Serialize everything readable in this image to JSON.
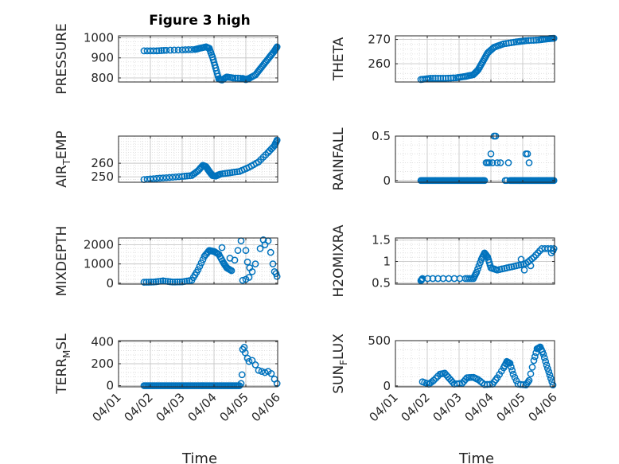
{
  "figure_title": "Figure 3 high",
  "marker_color": "#0072BD",
  "x_axis_label": "Time",
  "x_tick_labels": [
    "04/01",
    "04/02",
    "04/03",
    "04/04",
    "04/05",
    "04/06"
  ],
  "chart_data": [
    {
      "type": "scatter",
      "title": "Figure 3 high",
      "ylabel": "PRESSURE",
      "xlim": [
        0,
        5
      ],
      "ylim": [
        780,
        1010
      ],
      "yticks": [
        800,
        900,
        1000
      ],
      "yticklabels": [
        "800",
        "900",
        "1000"
      ],
      "xlabel": "",
      "segments": [
        [
          0.8,
          935
        ],
        [
          1.2,
          935
        ],
        [
          1.5,
          938
        ],
        [
          2.0,
          940
        ],
        [
          2.4,
          942
        ],
        [
          2.55,
          948
        ],
        [
          2.75,
          955
        ],
        [
          2.85,
          948
        ],
        [
          2.95,
          905
        ],
        [
          3.05,
          850
        ],
        [
          3.15,
          795
        ],
        [
          3.25,
          790
        ],
        [
          3.4,
          805
        ],
        [
          3.6,
          800
        ],
        [
          3.9,
          798
        ],
        [
          4.0,
          792
        ],
        [
          4.1,
          798
        ],
        [
          4.3,
          815
        ],
        [
          4.45,
          845
        ],
        [
          4.6,
          875
        ],
        [
          4.75,
          905
        ],
        [
          4.9,
          935
        ],
        [
          4.98,
          955
        ]
      ],
      "points_per_segment": 4
    },
    {
      "type": "scatter",
      "ylabel": "THETA",
      "xlim": [
        0,
        5
      ],
      "ylim": [
        252.5,
        271.5
      ],
      "yticks": [
        260,
        270
      ],
      "yticklabels": [
        "260",
        "270"
      ],
      "xlabel": "",
      "segments": [
        [
          0.8,
          253.5
        ],
        [
          1.1,
          254
        ],
        [
          1.5,
          254
        ],
        [
          1.9,
          254.2
        ],
        [
          2.2,
          254.8
        ],
        [
          2.45,
          255.5
        ],
        [
          2.6,
          257.5
        ],
        [
          2.75,
          261
        ],
        [
          2.9,
          264.5
        ],
        [
          3.1,
          266.8
        ],
        [
          3.4,
          268.2
        ],
        [
          3.8,
          269.0
        ],
        [
          4.1,
          269.5
        ],
        [
          4.5,
          269.8
        ],
        [
          4.8,
          270.3
        ],
        [
          4.98,
          270.5
        ]
      ],
      "points_per_segment": 5
    },
    {
      "type": "scatter",
      "ylabel": "AIR_TEMP",
      "xlim": [
        0,
        5
      ],
      "ylim": [
        246,
        280
      ],
      "yticks": [
        250,
        260
      ],
      "yticklabels": [
        "250",
        "260"
      ],
      "xlabel": "",
      "segments": [
        [
          0.8,
          248
        ],
        [
          1.2,
          248.8
        ],
        [
          1.6,
          249.5
        ],
        [
          2.0,
          250.3
        ],
        [
          2.3,
          251.0
        ],
        [
          2.5,
          254.5
        ],
        [
          2.65,
          258.5
        ],
        [
          2.75,
          257.5
        ],
        [
          2.85,
          254
        ],
        [
          2.95,
          251
        ],
        [
          3.05,
          250.5
        ],
        [
          3.2,
          252
        ],
        [
          3.5,
          253
        ],
        [
          3.8,
          254
        ],
        [
          4.1,
          257
        ],
        [
          4.4,
          261
        ],
        [
          4.7,
          268
        ],
        [
          4.9,
          273
        ],
        [
          4.98,
          277
        ]
      ],
      "points_per_segment": 4
    },
    {
      "type": "scatter",
      "ylabel": "RAINFALL",
      "xlim": [
        0,
        5
      ],
      "ylim": [
        -0.02,
        0.5
      ],
      "yticks": [
        0,
        0.5
      ],
      "yticklabels": [
        "0",
        "0.5"
      ],
      "xlabel": "",
      "segments": [
        [
          0.8,
          0
        ],
        [
          2.8,
          0
        ]
      ],
      "points_per_segment": 60,
      "segments_b": [
        [
          3.6,
          0
        ],
        [
          4.98,
          0
        ]
      ],
      "extra_points": [
        [
          2.85,
          0.2
        ],
        [
          2.9,
          0.2
        ],
        [
          2.95,
          0.2
        ],
        [
          3.0,
          0.3
        ],
        [
          3.05,
          0.2
        ],
        [
          3.1,
          0.5
        ],
        [
          3.15,
          0.5
        ],
        [
          3.2,
          0.2
        ],
        [
          3.3,
          0.2
        ],
        [
          3.45,
          0.0
        ],
        [
          3.5,
          0.0
        ],
        [
          3.55,
          0.2
        ],
        [
          3.9,
          0.0
        ],
        [
          4.1,
          0.3
        ],
        [
          4.15,
          0.3
        ],
        [
          4.2,
          0.2
        ]
      ]
    },
    {
      "type": "scatter",
      "ylabel": "MIXDEPTH",
      "xlim": [
        0,
        5
      ],
      "ylim": [
        -50,
        2350
      ],
      "yticks": [
        0,
        1000,
        2000
      ],
      "yticklabels": [
        "0",
        "1000",
        "2000"
      ],
      "xlabel": "",
      "segments": [
        [
          0.8,
          50
        ],
        [
          1.1,
          60
        ],
        [
          1.4,
          120
        ],
        [
          1.7,
          60
        ],
        [
          2.0,
          70
        ],
        [
          2.3,
          150
        ],
        [
          2.5,
          700
        ],
        [
          2.7,
          1400
        ],
        [
          2.85,
          1700
        ],
        [
          3.0,
          1650
        ],
        [
          3.15,
          1500
        ],
        [
          3.3,
          1050
        ],
        [
          3.4,
          800
        ],
        [
          3.55,
          650
        ]
      ],
      "points_per_segment": 4,
      "extra_points": [
        [
          3.25,
          1850
        ],
        [
          3.5,
          1300
        ],
        [
          3.65,
          1200
        ],
        [
          3.75,
          1700
        ],
        [
          3.85,
          2200
        ],
        [
          4.0,
          1700
        ],
        [
          4.05,
          1100
        ],
        [
          4.12,
          800
        ],
        [
          4.2,
          600
        ],
        [
          4.0,
          200
        ],
        [
          3.9,
          150
        ],
        [
          4.1,
          300
        ],
        [
          4.3,
          1000
        ],
        [
          4.45,
          1800
        ],
        [
          4.55,
          2250
        ],
        [
          4.6,
          2000
        ],
        [
          4.7,
          2200
        ],
        [
          4.78,
          1600
        ],
        [
          4.85,
          1000
        ],
        [
          4.9,
          600
        ],
        [
          4.95,
          500
        ],
        [
          4.98,
          350
        ]
      ]
    },
    {
      "type": "scatter",
      "ylabel": "H2OMIXRA",
      "xlim": [
        0,
        5
      ],
      "ylim": [
        0.47,
        1.55
      ],
      "yticks": [
        0.5,
        1,
        1.5
      ],
      "yticklabels": [
        "0.5",
        "1",
        "1.5"
      ],
      "xlabel": "",
      "segments": [
        [
          0.8,
          0.55
        ],
        [
          0.85,
          0.6
        ],
        [
          1.5,
          0.6
        ],
        [
          2.2,
          0.6
        ],
        [
          2.45,
          0.6
        ],
        [
          2.55,
          0.75
        ],
        [
          2.7,
          1.05
        ],
        [
          2.8,
          1.2
        ],
        [
          2.9,
          1.1
        ],
        [
          3.0,
          0.85
        ],
        [
          3.2,
          0.8
        ],
        [
          3.5,
          0.85
        ],
        [
          3.8,
          0.9
        ],
        [
          4.1,
          0.95
        ],
        [
          4.35,
          1.1
        ],
        [
          4.6,
          1.3
        ],
        [
          4.98,
          1.3
        ]
      ],
      "points_per_segment": 4,
      "extra_points": [
        [
          3.95,
          1.05
        ],
        [
          4.05,
          0.8
        ],
        [
          4.25,
          0.9
        ],
        [
          4.9,
          1.2
        ],
        [
          4.95,
          1.25
        ]
      ]
    },
    {
      "type": "scatter",
      "ylabel": "TERR_MSL",
      "xlim": [
        0,
        5
      ],
      "ylim": [
        -10,
        410
      ],
      "yticks": [
        0,
        200,
        400
      ],
      "yticklabels": [
        "0",
        "200",
        "400"
      ],
      "xlabel": "Time",
      "segments": [
        [
          0.8,
          0
        ],
        [
          3.8,
          0
        ]
      ],
      "points_per_segment": 70,
      "extra_points": [
        [
          3.85,
          20
        ],
        [
          3.88,
          100
        ],
        [
          3.9,
          330
        ],
        [
          3.95,
          350
        ],
        [
          3.98,
          300
        ],
        [
          4.05,
          250
        ],
        [
          4.1,
          220
        ],
        [
          4.2,
          230
        ],
        [
          4.3,
          190
        ],
        [
          4.4,
          140
        ],
        [
          4.5,
          130
        ],
        [
          4.6,
          120
        ],
        [
          4.7,
          130
        ],
        [
          4.8,
          110
        ],
        [
          4.9,
          60
        ],
        [
          4.98,
          20
        ]
      ]
    },
    {
      "type": "scatter",
      "ylabel": "SUN_FLUX",
      "xlim": [
        0,
        5
      ],
      "ylim": [
        -10,
        500
      ],
      "yticks": [
        0,
        500
      ],
      "yticklabels": [
        "0",
        "500"
      ],
      "xlabel": "Time",
      "segments": [
        [
          0.85,
          45
        ],
        [
          1.05,
          20
        ],
        [
          1.2,
          60
        ],
        [
          1.4,
          130
        ],
        [
          1.55,
          140
        ],
        [
          1.7,
          80
        ],
        [
          1.85,
          20
        ],
        [
          2.1,
          30
        ],
        [
          2.25,
          90
        ],
        [
          2.45,
          95
        ],
        [
          2.6,
          70
        ],
        [
          2.8,
          15
        ],
        [
          3.05,
          20
        ],
        [
          3.2,
          90
        ],
        [
          3.4,
          200
        ],
        [
          3.5,
          270
        ],
        [
          3.6,
          250
        ],
        [
          3.7,
          130
        ],
        [
          3.85,
          20
        ],
        [
          4.1,
          10
        ],
        [
          4.2,
          60
        ],
        [
          4.35,
          280
        ],
        [
          4.45,
          410
        ],
        [
          4.55,
          430
        ],
        [
          4.65,
          350
        ],
        [
          4.75,
          230
        ],
        [
          4.85,
          120
        ],
        [
          4.95,
          10
        ]
      ],
      "points_per_segment": 3
    }
  ]
}
